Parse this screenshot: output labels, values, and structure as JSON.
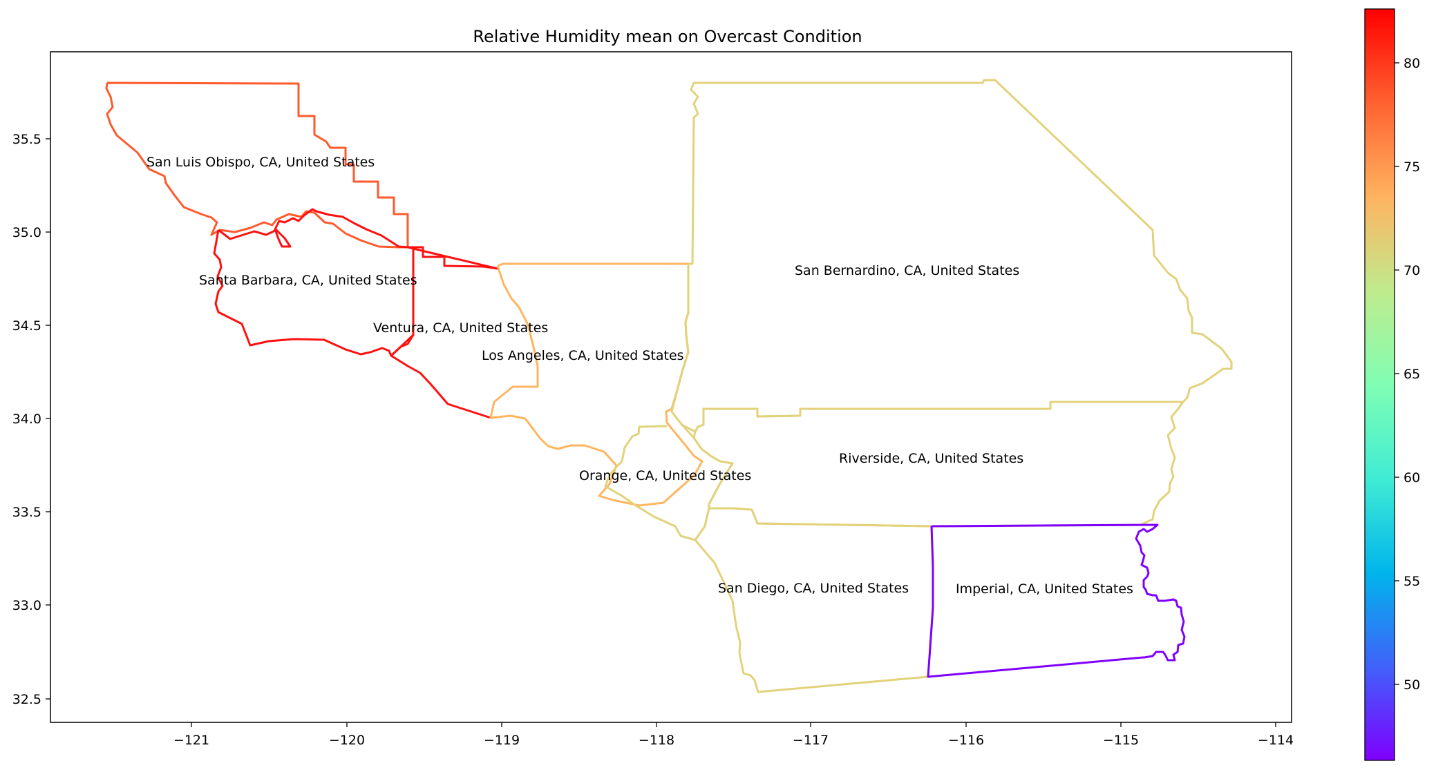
{
  "map": {
    "title": "Relative Humidity mean on Overcast Condition",
    "x_ticks": [
      "−121",
      "−120",
      "−119",
      "−118",
      "−117",
      "−116",
      "−115",
      "−114"
    ],
    "y_ticks": [
      "32.5",
      "33.0",
      "33.5",
      "34.0",
      "34.5",
      "35.0",
      "35.5"
    ],
    "colormap": "rainbow",
    "colorbar_ticks": [
      "50",
      "55",
      "60",
      "65",
      "70",
      "75",
      "80"
    ],
    "colorbar_range": [
      46.3,
      82.6
    ],
    "regions": [
      {
        "name": "San Luis Obispo, CA, United States",
        "color": "#ff5a2d"
      },
      {
        "name": "Santa Barbara, CA, United States",
        "color": "#ff1010"
      },
      {
        "name": "Ventura, CA, United States",
        "color": "#ff1010"
      },
      {
        "name": "Los Angeles, CA, United States",
        "color": "#fdb660"
      },
      {
        "name": "San Bernardino, CA, United States",
        "color": "#e2d27a"
      },
      {
        "name": "Riverside, CA, United States",
        "color": "#e2d27a"
      },
      {
        "name": "Orange, CA, United States",
        "color": "#e2d27a"
      },
      {
        "name": "San Diego, CA, United States",
        "color": "#e2d27a"
      },
      {
        "name": "Imperial, CA, United States",
        "color": "#7f00ff"
      }
    ]
  }
}
